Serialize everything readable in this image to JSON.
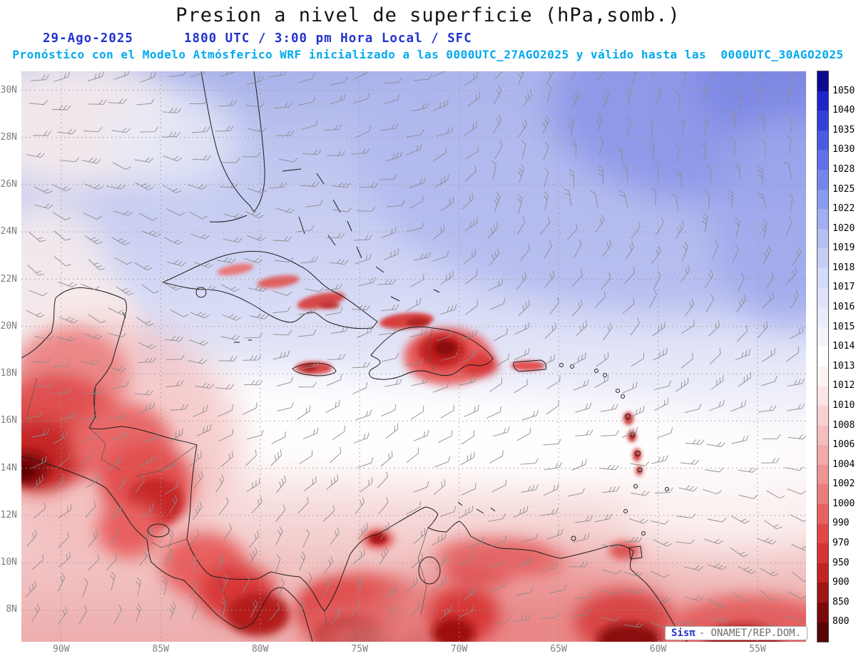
{
  "title": "Presion a nivel de superficie (hPa,somb.)",
  "header": {
    "date": "29-Ago-2025",
    "time_line": "1800 UTC / 3:00 pm Hora Local / SFC",
    "forecast_line": "Pronóstico con el Modelo Atmósferico WRF inicializado a las 0000UTC_27AGO2025 y válido hasta las  0000UTC_30AGO2025"
  },
  "map": {
    "lat_labels": [
      "30N",
      "28N",
      "26N",
      "24N",
      "22N",
      "20N",
      "18N",
      "16N",
      "14N",
      "12N",
      "10N",
      "8N"
    ],
    "lon_labels": [
      "90W",
      "85W",
      "80W",
      "75W",
      "70W",
      "65W",
      "60W",
      "55W"
    ]
  },
  "colorbar": {
    "units": "hPa",
    "labels": [
      "1050",
      "1040",
      "1035",
      "1030",
      "1028",
      "1025",
      "1022",
      "1020",
      "1019",
      "1018",
      "1017",
      "1016",
      "1015",
      "1014",
      "1013",
      "1012",
      "1010",
      "1008",
      "1006",
      "1004",
      "1002",
      "1000",
      "990",
      "970",
      "950",
      "900",
      "850",
      "800"
    ],
    "colors": [
      "#0b0b8f",
      "#1f24c8",
      "#3340d8",
      "#4a5ae2",
      "#5f70e8",
      "#7486ec",
      "#8a9af0",
      "#a0aef2",
      "#b4c0f4",
      "#c6cef6",
      "#d4daf8",
      "#e0e4fa",
      "#eaecfc",
      "#f4f4fd",
      "#ffffff",
      "#fdf3f3",
      "#fbe4e4",
      "#f8d2d2",
      "#f5bebe",
      "#f2aaaa",
      "#ee9494",
      "#ea7c7c",
      "#e66262",
      "#e04848",
      "#d43434",
      "#c02424",
      "#9e1616",
      "#7c0a0a",
      "#560404"
    ]
  },
  "footer": {
    "brand": "Sisπ",
    "credit": "- ONAMET/REP.DOM."
  }
}
